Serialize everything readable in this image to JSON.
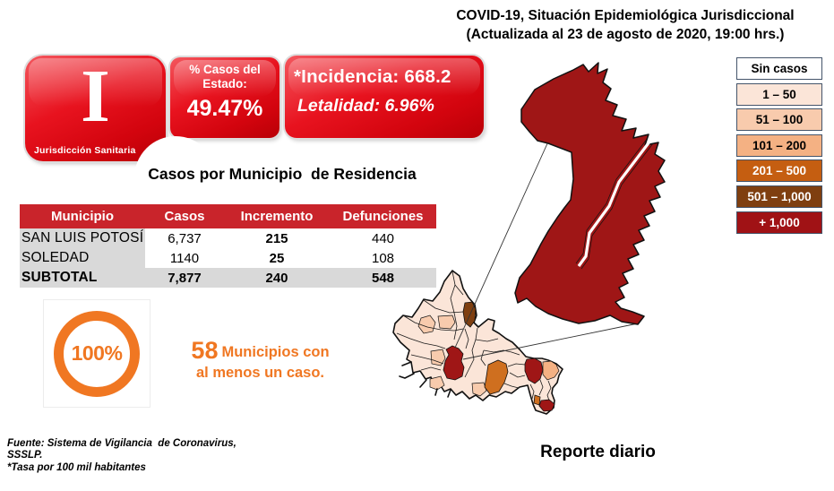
{
  "header": {
    "title_line1": "COVID-19, Situación Epidemiológica Jurisdiccional",
    "title_line2": "(Actualizada al 23 de agosto de 2020, 19:00 hrs.)"
  },
  "jurisdiction_badge": {
    "numeral": "I",
    "label": "Jurisdicción Sanitaria"
  },
  "state_share": {
    "label_line1": "% Casos del",
    "label_line2": "Estado:",
    "value": "49.47%"
  },
  "rates": {
    "incidence_line": "*Incidencia: 668.2",
    "lethality_line": "Letalidad: 6.96%"
  },
  "cases_table": {
    "title": "Casos por Municipio  de Residencia",
    "columns": [
      "Municipio",
      "Casos",
      "Incremento",
      "Defunciones"
    ],
    "rows": [
      {
        "municipio": "SAN LUIS POTOSÍ",
        "casos": "6,737",
        "incremento": "215",
        "defunciones": "440"
      },
      {
        "municipio": "SOLEDAD",
        "casos": "1140",
        "incremento": "25",
        "defunciones": "108"
      }
    ],
    "subtotal": {
      "municipio": "SUBTOTAL",
      "casos": "7,877",
      "incremento": "240",
      "defunciones": "548"
    }
  },
  "coverage": {
    "percent": "100%",
    "count": "58",
    "text_line1": "Municipios con",
    "text_line2": "al menos un caso."
  },
  "legend": {
    "items": [
      {
        "label": "Sin casos",
        "bg": "#ffffff",
        "text": "#000000"
      },
      {
        "label": "1 – 50",
        "bg": "#fbe5d8",
        "text": "#000000"
      },
      {
        "label": "51 – 100",
        "bg": "#f8cbad",
        "text": "#000000"
      },
      {
        "label": "101 – 200",
        "bg": "#f4b183",
        "text": "#000000"
      },
      {
        "label": "201 – 500",
        "bg": "#c55e11",
        "text": "#ffffff"
      },
      {
        "label": "501 – 1,000",
        "bg": "#7f3f10",
        "text": "#ffffff"
      },
      {
        "label": "+ 1,000",
        "bg": "#a01215",
        "text": "#ffffff"
      }
    ]
  },
  "footer": {
    "source_text": "Fuente: Sistema de Vigilancia  de Coronavirus,\nSSSLP.\n*Tasa por 100 mil habitantes",
    "report_label": "Reporte diario"
  },
  "colors": {
    "accent_red": "#e00b18",
    "table_header_red": "#c9242b",
    "orange": "#f07722",
    "map_dark_red": "#9f1616",
    "map_base": "#fbe5d8",
    "map_light2": "#f8cbad",
    "map_mid": "#f4b183",
    "map_orange": "#cf6f1f",
    "map_brown": "#7f3f10",
    "legend_border": "#44546a"
  }
}
